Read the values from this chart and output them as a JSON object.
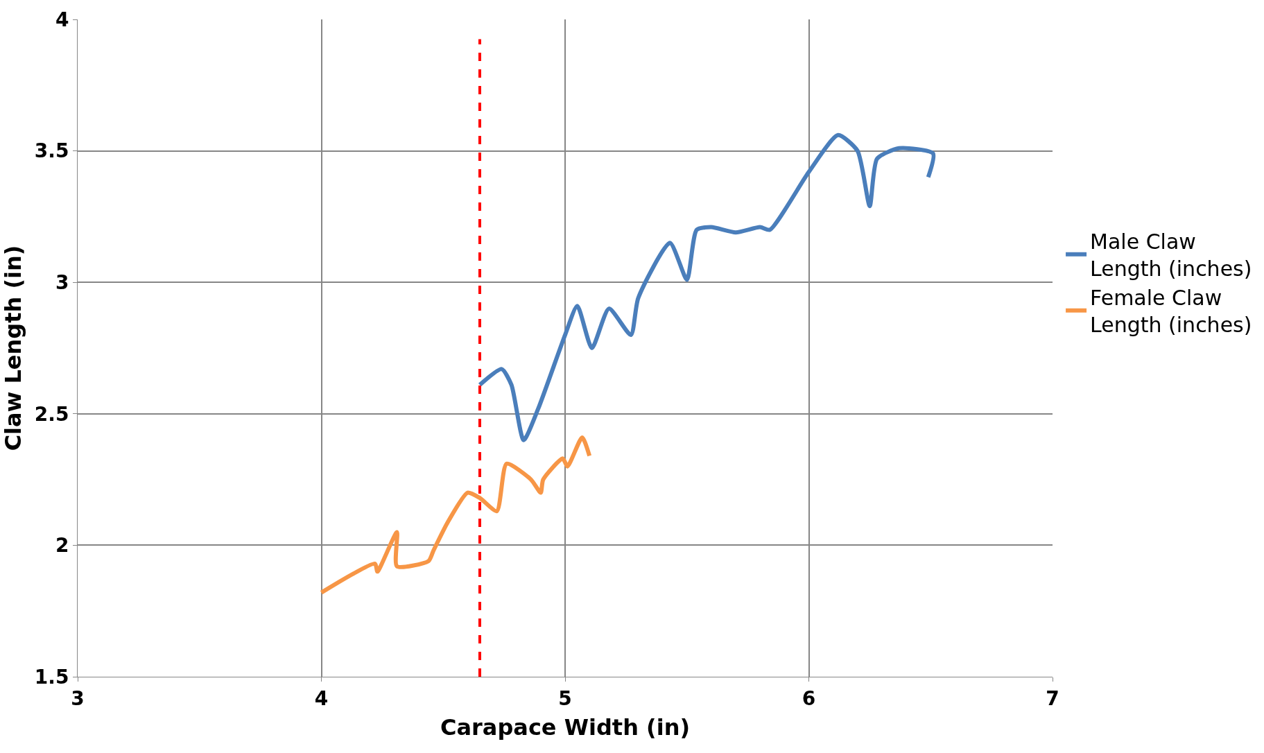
{
  "chart_data": {
    "type": "line",
    "xlabel": "Carapace Width (in)",
    "ylabel": "Claw Length (in)",
    "xlim": [
      3,
      7
    ],
    "xticks": [
      3,
      4,
      5,
      6,
      7
    ],
    "ylim": [
      1.5,
      4
    ],
    "yticks": [
      1.5,
      2,
      2.5,
      3,
      3.5,
      4
    ],
    "grid": true,
    "legend": "right",
    "marker": "none",
    "line_style": "solid",
    "series": [
      {
        "name": "Male Claw Length (inches)",
        "color": "#4a7ebb",
        "x": [
          4.65,
          4.74,
          4.78,
          4.83,
          4.89,
          5.0,
          5.05,
          5.11,
          5.18,
          5.27,
          5.3,
          5.43,
          5.5,
          5.54,
          5.6,
          5.7,
          5.8,
          5.84,
          6.0,
          6.12,
          6.2,
          6.25,
          6.28,
          6.37,
          6.51,
          6.49
        ],
        "values": [
          2.61,
          2.67,
          2.61,
          2.4,
          2.52,
          2.8,
          2.91,
          2.75,
          2.9,
          2.8,
          2.94,
          3.15,
          3.01,
          3.2,
          3.21,
          3.19,
          3.21,
          3.2,
          3.42,
          3.56,
          3.5,
          3.29,
          3.47,
          3.51,
          3.49,
          3.4
        ]
      },
      {
        "name": "Female Claw Length (inches)",
        "color": "#f79646",
        "x": [
          4.0,
          4.22,
          4.23,
          4.31,
          4.31,
          4.44,
          4.46,
          4.52,
          4.6,
          4.65,
          4.72,
          4.76,
          4.86,
          4.9,
          4.91,
          4.99,
          5.01,
          5.07,
          5.1
        ],
        "values": [
          1.82,
          1.93,
          1.9,
          2.05,
          1.92,
          1.94,
          1.98,
          2.09,
          2.2,
          2.18,
          2.13,
          2.31,
          2.25,
          2.2,
          2.25,
          2.33,
          2.3,
          2.41,
          2.34
        ]
      }
    ],
    "ref_lines": [
      {
        "axis": "x",
        "value": 4.65,
        "color": "#ff0000",
        "line_style": "dashed"
      }
    ]
  }
}
